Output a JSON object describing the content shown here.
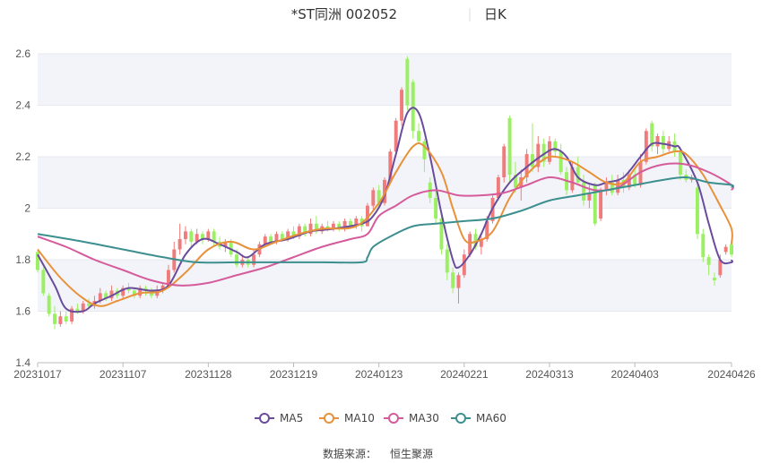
{
  "chart_data": {
    "type": "candlestick",
    "title": "*ST同洲 002052",
    "period_label": "日K",
    "source_label": "数据来源：",
    "source_value": "恒生聚源",
    "ylim": [
      1.4,
      2.6
    ],
    "yticks": [
      "1.4",
      "1.6",
      "1.8",
      "2",
      "2.2",
      "2.4",
      "2.6"
    ],
    "xticks": [
      {
        "label": "20231017",
        "index": 0
      },
      {
        "label": "20231107",
        "index": 15
      },
      {
        "label": "20231128",
        "index": 30
      },
      {
        "label": "20231219",
        "index": 45
      },
      {
        "label": "20240123",
        "index": 60
      },
      {
        "label": "20240221",
        "index": 75
      },
      {
        "label": "20240313",
        "index": 90
      },
      {
        "label": "20240403",
        "index": 105
      },
      {
        "label": "20240426",
        "index": 122
      }
    ],
    "colors": {
      "up": "#f07b7b",
      "down": "#9af062"
    },
    "candles": [
      [
        1.83,
        1.76,
        1.84,
        1.75
      ],
      [
        1.76,
        1.67,
        1.77,
        1.66
      ],
      [
        1.66,
        1.59,
        1.67,
        1.58
      ],
      [
        1.59,
        1.55,
        1.62,
        1.53
      ],
      [
        1.55,
        1.58,
        1.6,
        1.54
      ],
      [
        1.58,
        1.56,
        1.6,
        1.55
      ],
      [
        1.56,
        1.61,
        1.62,
        1.55
      ],
      [
        1.61,
        1.6,
        1.63,
        1.59
      ],
      [
        1.6,
        1.63,
        1.64,
        1.59
      ],
      [
        1.63,
        1.62,
        1.65,
        1.61
      ],
      [
        1.62,
        1.64,
        1.66,
        1.61
      ],
      [
        1.64,
        1.67,
        1.69,
        1.63
      ],
      [
        1.67,
        1.65,
        1.68,
        1.64
      ],
      [
        1.65,
        1.68,
        1.7,
        1.64
      ],
      [
        1.68,
        1.66,
        1.69,
        1.65
      ],
      [
        1.66,
        1.69,
        1.7,
        1.65
      ],
      [
        1.69,
        1.68,
        1.71,
        1.67
      ],
      [
        1.68,
        1.66,
        1.69,
        1.65
      ],
      [
        1.66,
        1.69,
        1.7,
        1.65
      ],
      [
        1.69,
        1.68,
        1.7,
        1.66
      ],
      [
        1.68,
        1.66,
        1.69,
        1.65
      ],
      [
        1.66,
        1.68,
        1.7,
        1.65
      ],
      [
        1.68,
        1.7,
        1.71,
        1.67
      ],
      [
        1.7,
        1.76,
        1.78,
        1.69
      ],
      [
        1.76,
        1.84,
        1.87,
        1.75
      ],
      [
        1.84,
        1.88,
        1.94,
        1.82
      ],
      [
        1.88,
        1.91,
        1.93,
        1.86
      ],
      [
        1.91,
        1.87,
        1.92,
        1.85
      ],
      [
        1.87,
        1.9,
        1.92,
        1.86
      ],
      [
        1.9,
        1.88,
        1.91,
        1.86
      ],
      [
        1.88,
        1.91,
        1.92,
        1.87
      ],
      [
        1.91,
        1.87,
        1.92,
        1.85
      ],
      [
        1.87,
        1.85,
        1.89,
        1.84
      ],
      [
        1.85,
        1.87,
        1.88,
        1.83
      ],
      [
        1.87,
        1.82,
        1.88,
        1.81
      ],
      [
        1.82,
        1.78,
        1.84,
        1.77
      ],
      [
        1.78,
        1.8,
        1.82,
        1.77
      ],
      [
        1.8,
        1.78,
        1.81,
        1.77
      ],
      [
        1.78,
        1.82,
        1.84,
        1.77
      ],
      [
        1.82,
        1.86,
        1.87,
        1.81
      ],
      [
        1.86,
        1.89,
        1.9,
        1.85
      ],
      [
        1.89,
        1.87,
        1.9,
        1.86
      ],
      [
        1.87,
        1.9,
        1.91,
        1.86
      ],
      [
        1.9,
        1.88,
        1.91,
        1.87
      ],
      [
        1.88,
        1.91,
        1.92,
        1.87
      ],
      [
        1.91,
        1.89,
        1.93,
        1.88
      ],
      [
        1.89,
        1.93,
        1.94,
        1.88
      ],
      [
        1.93,
        1.9,
        1.94,
        1.89
      ],
      [
        1.9,
        1.94,
        1.96,
        1.89
      ],
      [
        1.94,
        1.91,
        1.97,
        1.9
      ],
      [
        1.91,
        1.93,
        1.94,
        1.9
      ],
      [
        1.93,
        1.92,
        1.95,
        1.91
      ],
      [
        1.92,
        1.94,
        1.95,
        1.91
      ],
      [
        1.94,
        1.92,
        1.95,
        1.91
      ],
      [
        1.92,
        1.95,
        1.96,
        1.91
      ],
      [
        1.95,
        1.93,
        1.96,
        1.92
      ],
      [
        1.93,
        1.96,
        1.97,
        1.92
      ],
      [
        1.96,
        1.93,
        1.97,
        1.91
      ],
      [
        1.93,
        2.01,
        2.02,
        1.93
      ],
      [
        2.01,
        2.07,
        2.08,
        1.99
      ],
      [
        2.07,
        2.02,
        2.09,
        2.0
      ],
      [
        2.02,
        2.11,
        2.12,
        2.01
      ],
      [
        2.11,
        2.22,
        2.23,
        2.1
      ],
      [
        2.22,
        2.34,
        2.35,
        2.2
      ],
      [
        2.34,
        2.46,
        2.47,
        2.32
      ],
      [
        2.58,
        2.4,
        2.59,
        2.38
      ],
      [
        2.49,
        2.3,
        2.5,
        2.27
      ],
      [
        2.3,
        2.26,
        2.33,
        2.25
      ],
      [
        2.26,
        2.19,
        2.27,
        2.14
      ],
      [
        2.1,
        2.04,
        2.12,
        2.02
      ],
      [
        2.04,
        1.96,
        2.07,
        1.94
      ],
      [
        1.96,
        1.84,
        1.97,
        1.82
      ],
      [
        1.84,
        1.75,
        1.86,
        1.72
      ],
      [
        1.75,
        1.69,
        1.77,
        1.67
      ],
      [
        1.69,
        1.74,
        1.75,
        1.63
      ],
      [
        1.74,
        1.82,
        1.84,
        1.73
      ],
      [
        1.82,
        1.9,
        1.91,
        1.81
      ],
      [
        1.9,
        1.85,
        1.92,
        1.84
      ],
      [
        1.85,
        1.88,
        1.89,
        1.82
      ],
      [
        1.88,
        1.95,
        1.97,
        1.87
      ],
      [
        1.95,
        2.04,
        2.05,
        1.94
      ],
      [
        2.04,
        2.12,
        2.13,
        2.03
      ],
      [
        2.12,
        2.24,
        2.25,
        2.1
      ],
      [
        2.35,
        2.13,
        2.36,
        2.1
      ],
      [
        2.13,
        2.08,
        2.18,
        2.06
      ],
      [
        2.08,
        2.12,
        2.15,
        2.03
      ],
      [
        2.12,
        2.21,
        2.23,
        2.1
      ],
      [
        2.21,
        2.16,
        2.33,
        2.14
      ],
      [
        2.16,
        2.25,
        2.28,
        2.14
      ],
      [
        2.25,
        2.18,
        2.27,
        2.16
      ],
      [
        2.18,
        2.26,
        2.28,
        2.17
      ],
      [
        2.26,
        2.22,
        2.27,
        2.2
      ],
      [
        2.22,
        2.14,
        2.25,
        2.13
      ],
      [
        2.14,
        2.07,
        2.16,
        2.05
      ],
      [
        2.07,
        2.16,
        2.18,
        2.06
      ],
      [
        2.16,
        2.1,
        2.2,
        2.09
      ],
      [
        2.1,
        2.03,
        2.13,
        2.01
      ],
      [
        2.03,
        2.06,
        2.09,
        2.0
      ],
      [
        2.09,
        1.94,
        2.1,
        1.93
      ],
      [
        1.96,
        2.07,
        2.08,
        1.95
      ],
      [
        2.07,
        2.1,
        2.12,
        2.05
      ],
      [
        2.1,
        2.06,
        2.13,
        2.05
      ],
      [
        2.06,
        2.11,
        2.13,
        2.05
      ],
      [
        2.11,
        2.08,
        2.14,
        2.06
      ],
      [
        2.08,
        2.13,
        2.15,
        2.07
      ],
      [
        2.13,
        2.09,
        2.16,
        2.08
      ],
      [
        2.09,
        2.18,
        2.21,
        2.08
      ],
      [
        2.18,
        2.3,
        2.31,
        2.17
      ],
      [
        2.33,
        2.24,
        2.34,
        2.22
      ],
      [
        2.24,
        2.28,
        2.29,
        2.21
      ],
      [
        2.28,
        2.23,
        2.3,
        2.21
      ],
      [
        2.23,
        2.26,
        2.28,
        2.22
      ],
      [
        2.26,
        2.22,
        2.29,
        2.2
      ],
      [
        2.22,
        2.13,
        2.24,
        2.11
      ],
      [
        2.13,
        2.11,
        2.15,
        2.1
      ],
      [
        2.11,
        2.12,
        2.13,
        2.1
      ],
      [
        2.08,
        1.9,
        2.1,
        1.88
      ],
      [
        1.9,
        1.81,
        1.92,
        1.79
      ],
      [
        1.81,
        1.78,
        1.82,
        1.74
      ],
      [
        1.73,
        1.72,
        1.75,
        1.7
      ],
      [
        1.74,
        1.8,
        1.82,
        1.73
      ],
      [
        1.83,
        1.85,
        1.86,
        1.82
      ],
      [
        1.86,
        1.82,
        1.87,
        1.81
      ]
    ],
    "series": [
      {
        "name": "MA5",
        "color": "#6a4c9c",
        "points": [
          [
            0,
            1.82
          ],
          [
            3,
            1.7
          ],
          [
            5,
            1.61
          ],
          [
            8,
            1.6
          ],
          [
            10,
            1.63
          ],
          [
            13,
            1.66
          ],
          [
            16,
            1.69
          ],
          [
            20,
            1.68
          ],
          [
            23,
            1.7
          ],
          [
            26,
            1.82
          ],
          [
            29,
            1.88
          ],
          [
            32,
            1.86
          ],
          [
            35,
            1.83
          ],
          [
            37,
            1.81
          ],
          [
            40,
            1.86
          ],
          [
            44,
            1.88
          ],
          [
            48,
            1.91
          ],
          [
            52,
            1.92
          ],
          [
            57,
            1.94
          ],
          [
            59,
            1.97
          ],
          [
            61,
            2.05
          ],
          [
            63,
            2.21
          ],
          [
            65,
            2.37
          ],
          [
            67,
            2.37
          ],
          [
            69,
            2.2
          ],
          [
            71,
            1.98
          ],
          [
            73,
            1.8
          ],
          [
            74,
            1.77
          ],
          [
            76,
            1.82
          ],
          [
            78,
            1.9
          ],
          [
            80,
            2.0
          ],
          [
            83,
            2.1
          ],
          [
            86,
            2.16
          ],
          [
            89,
            2.21
          ],
          [
            91,
            2.23
          ],
          [
            93,
            2.2
          ],
          [
            95,
            2.12
          ],
          [
            98,
            2.09
          ],
          [
            100,
            2.1
          ],
          [
            103,
            2.12
          ],
          [
            106,
            2.2
          ],
          [
            108,
            2.25
          ],
          [
            110,
            2.25
          ],
          [
            112,
            2.24
          ],
          [
            113,
            2.23
          ],
          [
            116,
            2.1
          ],
          [
            118,
            1.94
          ],
          [
            120,
            1.8
          ],
          [
            122,
            1.79
          ],
          [
            125,
            1.8
          ]
        ]
      },
      {
        "name": "MA10",
        "color": "#e8913a",
        "points": [
          [
            0,
            1.84
          ],
          [
            4,
            1.73
          ],
          [
            8,
            1.65
          ],
          [
            11,
            1.62
          ],
          [
            14,
            1.64
          ],
          [
            18,
            1.67
          ],
          [
            22,
            1.68
          ],
          [
            26,
            1.75
          ],
          [
            30,
            1.84
          ],
          [
            34,
            1.87
          ],
          [
            38,
            1.84
          ],
          [
            42,
            1.87
          ],
          [
            46,
            1.9
          ],
          [
            50,
            1.92
          ],
          [
            56,
            1.93
          ],
          [
            60,
            2.02
          ],
          [
            63,
            2.14
          ],
          [
            66,
            2.24
          ],
          [
            68,
            2.24
          ],
          [
            71,
            2.14
          ],
          [
            73,
            2.0
          ],
          [
            75,
            1.88
          ],
          [
            77,
            1.87
          ],
          [
            80,
            1.91
          ],
          [
            83,
            2.04
          ],
          [
            86,
            2.13
          ],
          [
            89,
            2.19
          ],
          [
            91,
            2.2
          ],
          [
            94,
            2.18
          ],
          [
            97,
            2.14
          ],
          [
            100,
            2.1
          ],
          [
            103,
            2.1
          ],
          [
            106,
            2.18
          ],
          [
            109,
            2.2
          ],
          [
            112,
            2.22
          ],
          [
            114,
            2.21
          ],
          [
            117,
            2.13
          ],
          [
            120,
            2.01
          ],
          [
            123,
            1.92
          ],
          [
            125,
            1.86
          ]
        ]
      },
      {
        "name": "MA30",
        "color": "#d55b9a",
        "points": [
          [
            0,
            1.89
          ],
          [
            5,
            1.85
          ],
          [
            10,
            1.8
          ],
          [
            15,
            1.76
          ],
          [
            20,
            1.72
          ],
          [
            25,
            1.7
          ],
          [
            30,
            1.71
          ],
          [
            35,
            1.74
          ],
          [
            40,
            1.77
          ],
          [
            45,
            1.81
          ],
          [
            50,
            1.85
          ],
          [
            55,
            1.88
          ],
          [
            58,
            1.9
          ],
          [
            60,
            1.97
          ],
          [
            63,
            2.01
          ],
          [
            66,
            2.05
          ],
          [
            70,
            2.07
          ],
          [
            74,
            2.05
          ],
          [
            78,
            2.05
          ],
          [
            82,
            2.06
          ],
          [
            86,
            2.09
          ],
          [
            90,
            2.12
          ],
          [
            94,
            2.1
          ],
          [
            98,
            2.07
          ],
          [
            102,
            2.08
          ],
          [
            106,
            2.14
          ],
          [
            110,
            2.17
          ],
          [
            114,
            2.17
          ],
          [
            118,
            2.14
          ],
          [
            122,
            2.09
          ],
          [
            125,
            2.07
          ]
        ]
      },
      {
        "name": "MA60",
        "color": "#3d8f8f",
        "points": [
          [
            0,
            1.9
          ],
          [
            8,
            1.87
          ],
          [
            15,
            1.84
          ],
          [
            22,
            1.81
          ],
          [
            28,
            1.79
          ],
          [
            35,
            1.79
          ],
          [
            42,
            1.79
          ],
          [
            50,
            1.79
          ],
          [
            57,
            1.79
          ],
          [
            58,
            1.81
          ],
          [
            59,
            1.85
          ],
          [
            62,
            1.89
          ],
          [
            66,
            1.93
          ],
          [
            70,
            1.94
          ],
          [
            75,
            1.95
          ],
          [
            80,
            1.96
          ],
          [
            85,
            1.99
          ],
          [
            90,
            2.03
          ],
          [
            95,
            2.05
          ],
          [
            100,
            2.07
          ],
          [
            105,
            2.09
          ],
          [
            110,
            2.11
          ],
          [
            114,
            2.12
          ],
          [
            118,
            2.1
          ],
          [
            122,
            2.09
          ],
          [
            125,
            2.08
          ]
        ]
      }
    ]
  }
}
